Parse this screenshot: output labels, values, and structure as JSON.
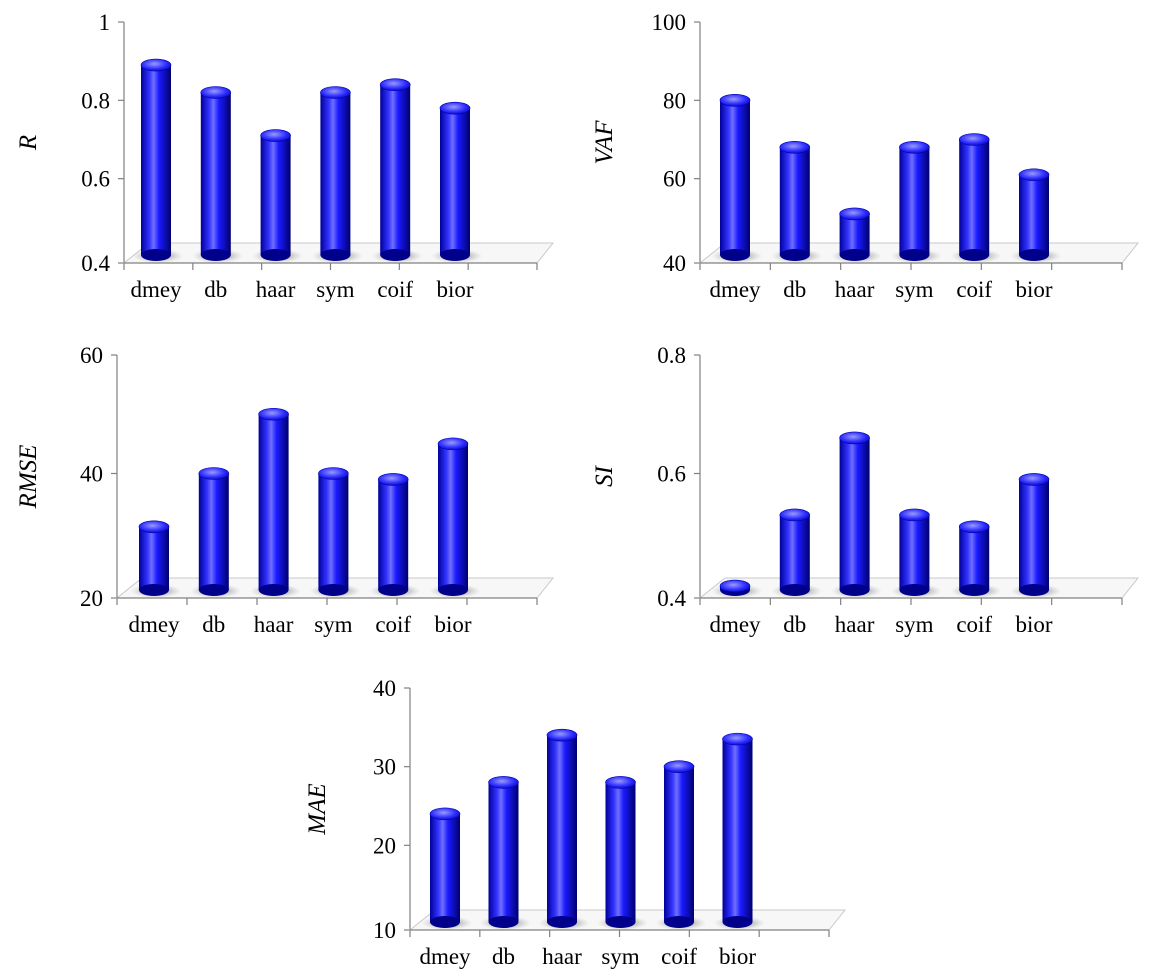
{
  "colors": {
    "bar": "#1a1aff",
    "bar_dark": "#00007a",
    "bar_light": "#8c8cff",
    "axis": "#808080",
    "floor": "#c8c8c8"
  },
  "chart_data": [
    {
      "type": "bar",
      "ylabel": "R",
      "categories": [
        "dmey",
        "db",
        "haar",
        "sym",
        "coif",
        "bior"
      ],
      "values": [
        0.89,
        0.82,
        0.71,
        0.82,
        0.84,
        0.78
      ],
      "ylim": [
        0.4,
        1
      ],
      "yticks": [
        "0.4",
        "0.6",
        "0.8",
        "1"
      ]
    },
    {
      "type": "bar",
      "ylabel": "VAF",
      "categories": [
        "dmey",
        "db",
        "haar",
        "sym",
        "coif",
        "bior"
      ],
      "values": [
        80,
        68,
        51,
        68,
        70,
        61
      ],
      "ylim": [
        40,
        100
      ],
      "yticks": [
        "40",
        "60",
        "80",
        "100"
      ]
    },
    {
      "type": "bar",
      "ylabel": "RMSE",
      "categories": [
        "dmey",
        "db",
        "haar",
        "sym",
        "coif",
        "bior"
      ],
      "values": [
        31,
        40,
        50,
        40,
        39,
        45
      ],
      "ylim": [
        20,
        60
      ],
      "yticks": [
        "20",
        "40",
        "60"
      ]
    },
    {
      "type": "bar",
      "ylabel": "SI",
      "categories": [
        "dmey",
        "db",
        "haar",
        "sym",
        "coif",
        "bior"
      ],
      "values": [
        0.41,
        0.53,
        0.66,
        0.53,
        0.51,
        0.59
      ],
      "ylim": [
        0.4,
        0.8
      ],
      "yticks": [
        "0.4",
        "0.6",
        "0.8"
      ]
    },
    {
      "type": "bar",
      "ylabel": "MAE",
      "categories": [
        "dmey",
        "db",
        "haar",
        "sym",
        "coif",
        "bior"
      ],
      "values": [
        24,
        28,
        34,
        28,
        30,
        33.5
      ],
      "ylim": [
        10,
        40
      ],
      "yticks": [
        "10",
        "20",
        "30",
        "40"
      ]
    }
  ]
}
